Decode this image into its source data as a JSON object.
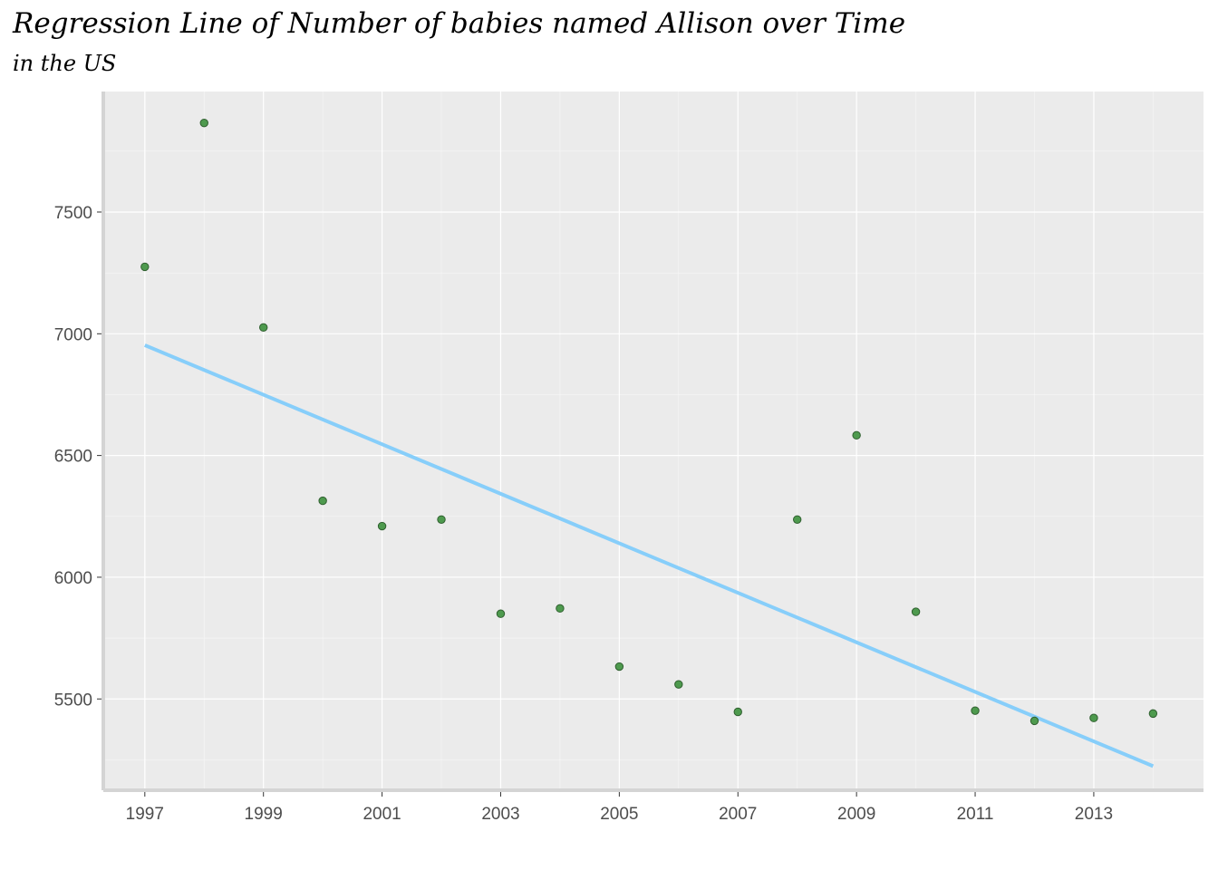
{
  "chart_data": {
    "type": "scatter",
    "title": "Regression Line of Number of babies named Allison over Time",
    "subtitle": "in the US",
    "xlabel": "",
    "ylabel": "",
    "x": [
      1997,
      1998,
      1999,
      2000,
      2001,
      2002,
      2003,
      2004,
      2005,
      2006,
      2007,
      2008,
      2009,
      2010,
      2011,
      2012,
      2013,
      2014
    ],
    "y": [
      7275,
      7866,
      7026,
      6314,
      6210,
      6237,
      5850,
      5872,
      5633,
      5560,
      5447,
      6237,
      6583,
      5858,
      5452,
      5410,
      5422,
      5440
    ],
    "xlim": [
      1996.3,
      2014.85
    ],
    "ylim": [
      5125,
      7995
    ],
    "x_ticks": [
      1997,
      1999,
      2001,
      2003,
      2005,
      2007,
      2009,
      2011,
      2013
    ],
    "x_tick_labels": [
      "1997",
      "1999",
      "2001",
      "2003",
      "2005",
      "2007",
      "2009",
      "2011",
      "2013"
    ],
    "y_ticks": [
      5500,
      6000,
      6500,
      7000,
      7500
    ],
    "y_tick_labels": [
      "5500",
      "6000",
      "6500",
      "7000",
      "7500"
    ],
    "regression_line": {
      "x": [
        1997,
        2014
      ],
      "y": [
        6953,
        5224
      ],
      "color": "#87cefa"
    },
    "point_fill": "#4e9a4e",
    "point_stroke": "#2f5f2f",
    "panel_background": "#ebebeb",
    "grid": true,
    "legend": "none"
  }
}
